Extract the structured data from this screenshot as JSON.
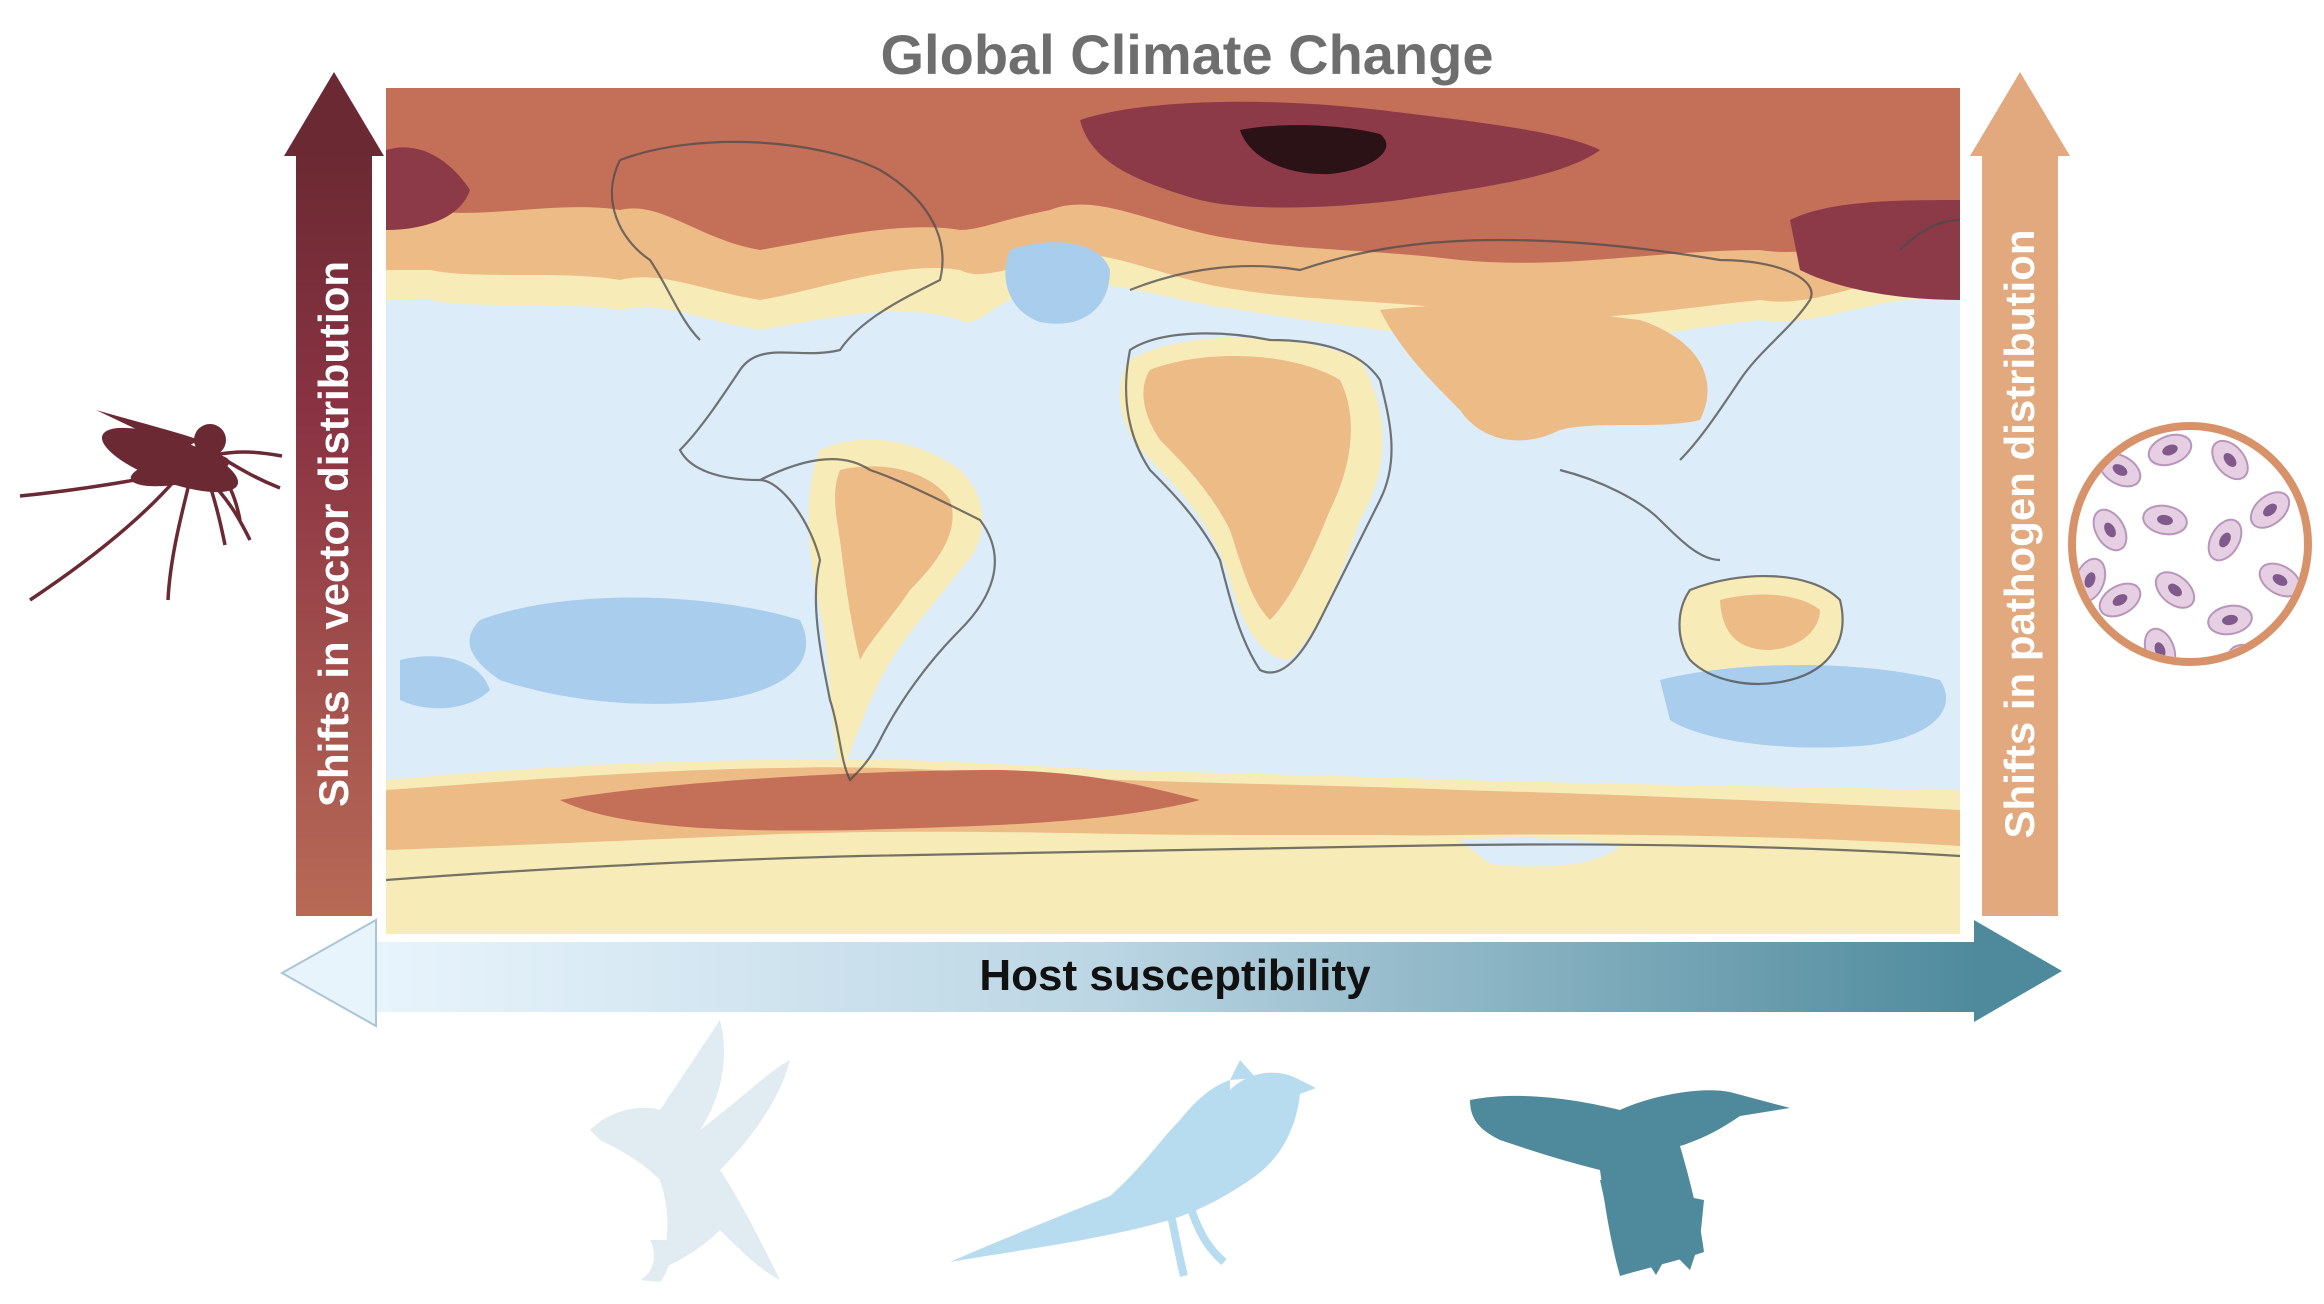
{
  "title": "Global Climate Change",
  "left_axis": {
    "label": "Shifts in vector distribution",
    "color_top": "#6b2a33",
    "color_bottom": "#b86a56"
  },
  "right_axis": {
    "label": "Shifts in pathogen distribution",
    "color": "#e2a87e"
  },
  "bottom_axis": {
    "label": "Host susceptibility",
    "color_left": "#e5f2fb",
    "color_right": "#4e8a9c"
  },
  "icons": {
    "left": "mosquito-icon",
    "right": "blood-cells-icon",
    "birds": [
      "bird-low-susceptibility-icon",
      "bird-medium-susceptibility-icon",
      "bird-high-susceptibility-icon"
    ]
  },
  "map_colors": {
    "ocean_light": "#dcecf8",
    "ocean_cool": "#a9cdec",
    "warm_1": "#f7ecb8",
    "warm_2": "#edbb86",
    "warm_3": "#c46f58",
    "warm_4": "#8c3a48",
    "warm_5": "#2a1216"
  }
}
